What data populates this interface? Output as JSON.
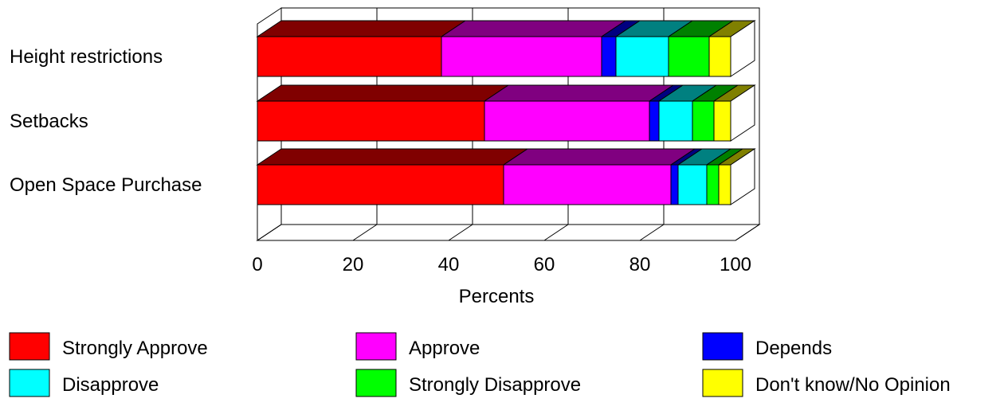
{
  "chart_data": {
    "type": "bar",
    "orientation": "horizontal",
    "stacked": true,
    "style": "3d",
    "categories": [
      "Height restrictions",
      "Setbacks",
      "Open Space Purchase"
    ],
    "series": [
      {
        "name": "Strongly Approve",
        "color": "#ff0000",
        "values": [
          38.5,
          47.5,
          51.5
        ]
      },
      {
        "name": "Approve",
        "color": "#ff00ff",
        "values": [
          33.5,
          34.5,
          35.0
        ]
      },
      {
        "name": "Depends",
        "color": "#0000ff",
        "values": [
          3.0,
          2.0,
          1.5
        ]
      },
      {
        "name": "Disapprove",
        "color": "#00ffff",
        "values": [
          11.0,
          7.0,
          6.0
        ]
      },
      {
        "name": "Strongly Disapprove",
        "color": "#00ff00",
        "values": [
          8.5,
          4.5,
          2.5
        ]
      },
      {
        "name": "Don't know/No Opinion",
        "color": "#ffff00",
        "values": [
          4.5,
          3.5,
          2.5
        ]
      }
    ],
    "xlabel": "Percents",
    "xlim": [
      0,
      100
    ],
    "xticks": [
      0,
      20,
      40,
      60,
      80,
      100
    ],
    "tick_labels": [
      "0",
      "20",
      "40",
      "60",
      "80",
      "100"
    ],
    "grid": "vertical",
    "legend": "bottom"
  }
}
